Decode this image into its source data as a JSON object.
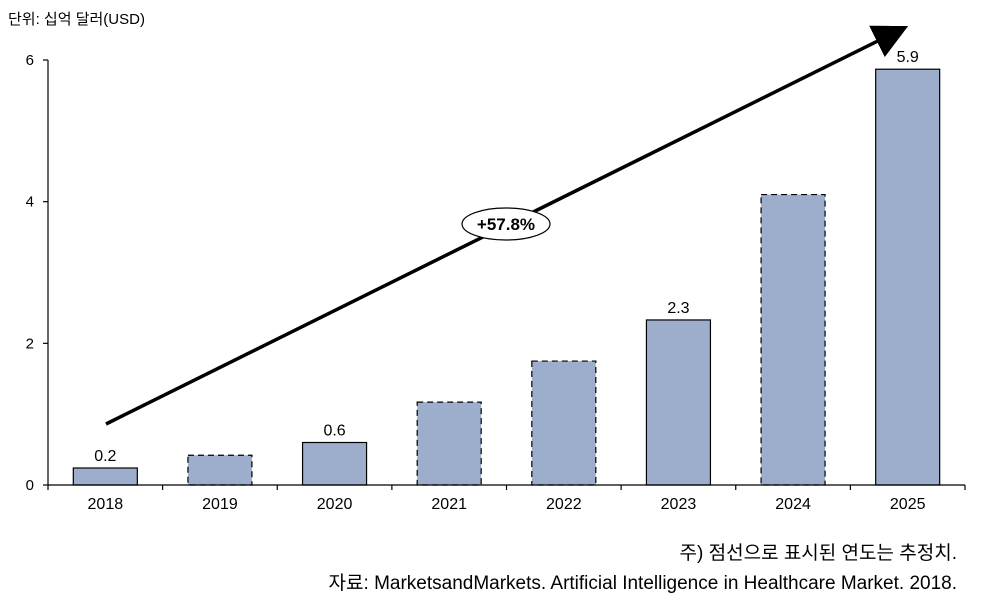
{
  "unit_label": "단위: 십억 달러(USD)",
  "note": "주) 점선으로 표시된 연도는 추정치.",
  "source": "자료: MarketsandMarkets. Artificial Intelligence in Healthcare Market. 2018.",
  "chart_data": {
    "type": "bar",
    "categories": [
      "2018",
      "2019",
      "2020",
      "2021",
      "2022",
      "2023",
      "2024",
      "2025"
    ],
    "values": [
      0.24,
      0.42,
      0.6,
      1.17,
      1.75,
      2.33,
      4.1,
      5.87
    ],
    "estimated": [
      false,
      true,
      false,
      true,
      true,
      false,
      true,
      false
    ],
    "data_labels": [
      "0.2",
      "",
      "0.6",
      "",
      "",
      "2.3",
      "",
      "5.9"
    ],
    "yticks": [
      "0",
      "2",
      "4",
      "6"
    ],
    "ylim": [
      0,
      6
    ],
    "growth_annotation": "+57.8%",
    "bar_color": "#9DAECC",
    "grid": false
  }
}
